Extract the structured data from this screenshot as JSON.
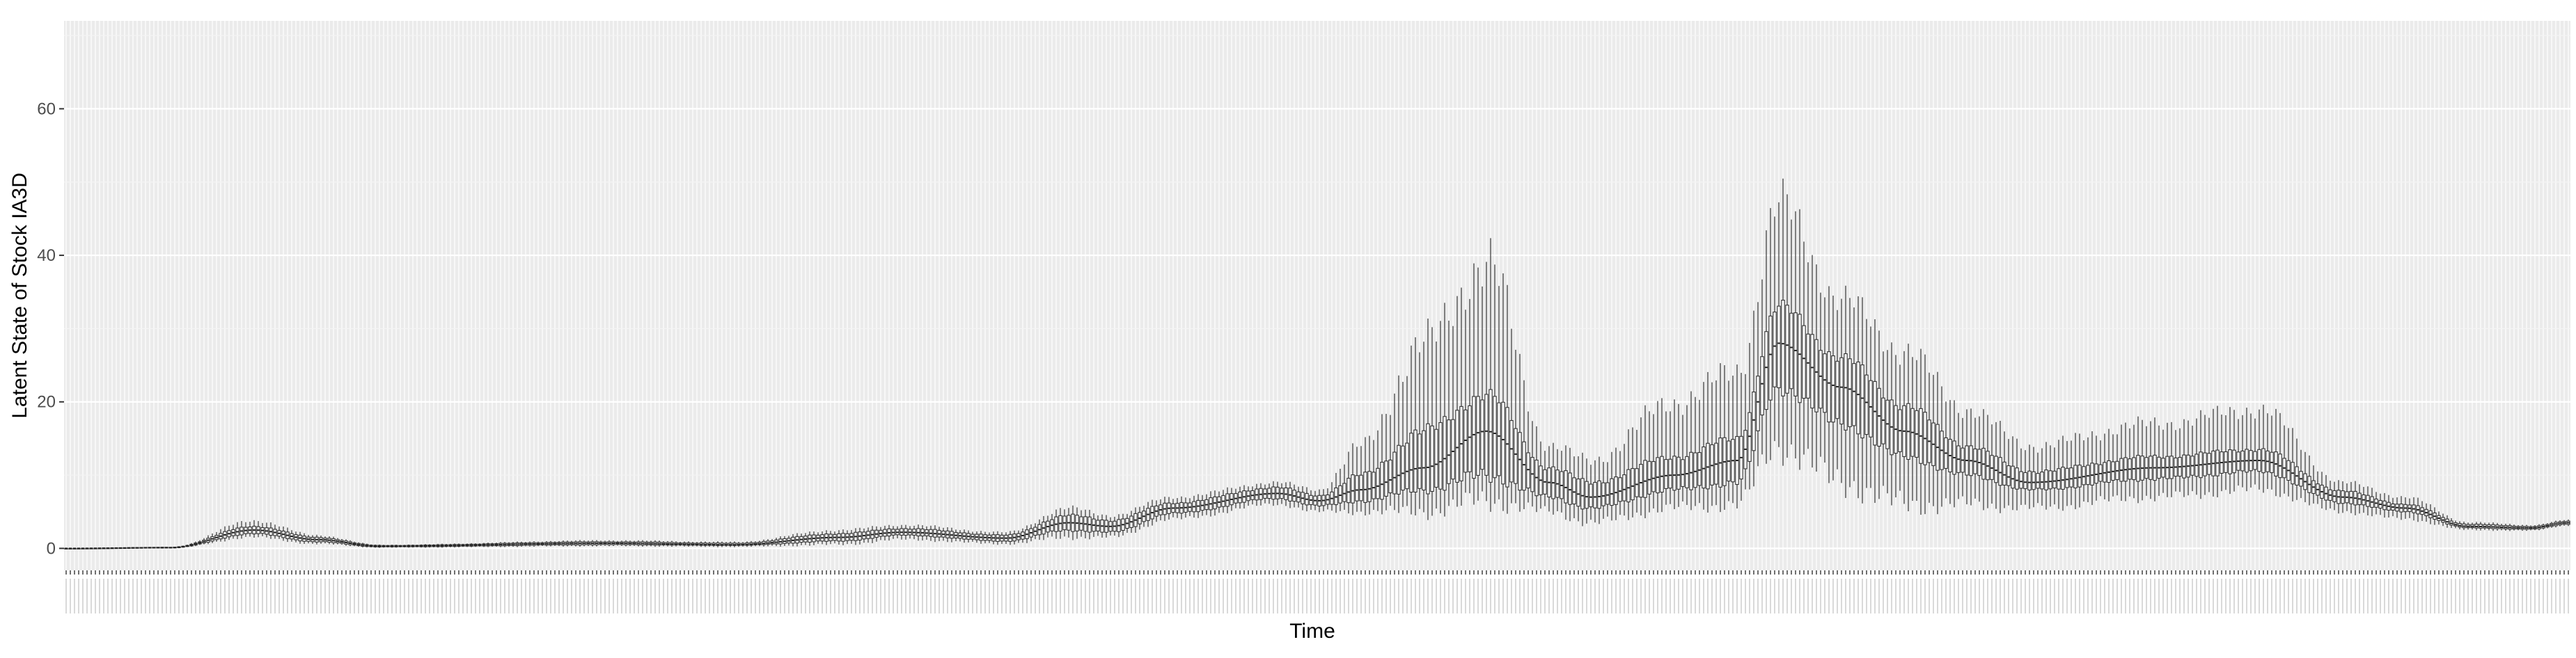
{
  "chart_data": {
    "type": "boxplot",
    "title": "",
    "xlabel": "Time",
    "ylabel": "Latent State of Stock IA3D",
    "ylim": [
      -3,
      72
    ],
    "y_ticks": [
      0,
      20,
      40,
      60
    ],
    "x_tick_labels_legible": false,
    "n_time_steps": 600,
    "grid": true,
    "panel_background": "#ebebeb",
    "box_color": "#333333",
    "series": [
      {
        "name": "",
        "description_of_median": "median per time step (approx. sampled every ~50 steps)",
        "keyframes": [
          {
            "t": 0,
            "median": 0.0,
            "q1": 0.0,
            "q3": 0.0,
            "lo": 0.0,
            "hi": 0.0
          },
          {
            "t": 25,
            "median": 0.1,
            "q1": 0.05,
            "q3": 0.15,
            "lo": 0.0,
            "hi": 0.2
          },
          {
            "t": 45,
            "median": 2.5,
            "q1": 2.0,
            "q3": 3.0,
            "lo": 1.5,
            "hi": 3.8
          },
          {
            "t": 60,
            "median": 1.2,
            "q1": 0.9,
            "q3": 1.5,
            "lo": 0.6,
            "hi": 1.8
          },
          {
            "t": 75,
            "median": 0.3,
            "q1": 0.2,
            "q3": 0.4,
            "lo": 0.1,
            "hi": 0.5
          },
          {
            "t": 130,
            "median": 0.7,
            "q1": 0.5,
            "q3": 0.9,
            "lo": 0.3,
            "hi": 1.1
          },
          {
            "t": 160,
            "median": 0.5,
            "q1": 0.4,
            "q3": 0.7,
            "lo": 0.2,
            "hi": 0.9
          },
          {
            "t": 185,
            "median": 1.5,
            "q1": 1.0,
            "q3": 2.0,
            "lo": 0.5,
            "hi": 2.5
          },
          {
            "t": 200,
            "median": 2.2,
            "q1": 1.8,
            "q3": 2.7,
            "lo": 1.2,
            "hi": 3.2
          },
          {
            "t": 225,
            "median": 1.4,
            "q1": 1.0,
            "q3": 1.8,
            "lo": 0.6,
            "hi": 2.2
          },
          {
            "t": 240,
            "median": 3.5,
            "q1": 2.5,
            "q3": 4.5,
            "lo": 1.5,
            "hi": 5.5
          },
          {
            "t": 250,
            "median": 3.0,
            "q1": 2.2,
            "q3": 3.8,
            "lo": 1.5,
            "hi": 4.5
          },
          {
            "t": 265,
            "median": 5.5,
            "q1": 4.8,
            "q3": 6.2,
            "lo": 4.0,
            "hi": 7.0
          },
          {
            "t": 290,
            "median": 7.5,
            "q1": 6.8,
            "q3": 8.3,
            "lo": 6.0,
            "hi": 9.0
          },
          {
            "t": 300,
            "median": 6.5,
            "q1": 5.8,
            "q3": 7.2,
            "lo": 5.0,
            "hi": 8.0
          },
          {
            "t": 310,
            "median": 8.0,
            "q1": 6.5,
            "q3": 10.0,
            "lo": 5.0,
            "hi": 14.0
          },
          {
            "t": 325,
            "median": 11.0,
            "q1": 8.0,
            "q3": 16.0,
            "lo": 5.0,
            "hi": 28.0
          },
          {
            "t": 340,
            "median": 16.0,
            "q1": 10.0,
            "q3": 21.0,
            "lo": 6.5,
            "hi": 39.0
          },
          {
            "t": 355,
            "median": 9.0,
            "q1": 7.0,
            "q3": 11.0,
            "lo": 5.0,
            "hi": 14.0
          },
          {
            "t": 365,
            "median": 7.0,
            "q1": 5.5,
            "q3": 9.0,
            "lo": 3.5,
            "hi": 12.0
          },
          {
            "t": 385,
            "median": 10.0,
            "q1": 8.0,
            "q3": 12.5,
            "lo": 5.5,
            "hi": 20.0
          },
          {
            "t": 400,
            "median": 12.0,
            "q1": 9.0,
            "q3": 15.0,
            "lo": 6.0,
            "hi": 24.0
          },
          {
            "t": 410,
            "median": 28.0,
            "q1": 22.0,
            "q3": 33.0,
            "lo": 14.0,
            "hi": 47.0
          },
          {
            "t": 425,
            "median": 22.0,
            "q1": 17.0,
            "q3": 26.0,
            "lo": 9.0,
            "hi": 34.0
          },
          {
            "t": 440,
            "median": 16.0,
            "q1": 12.5,
            "q3": 19.5,
            "lo": 6.0,
            "hi": 27.0
          },
          {
            "t": 455,
            "median": 12.0,
            "q1": 10.0,
            "q3": 14.0,
            "lo": 6.0,
            "hi": 19.0
          },
          {
            "t": 470,
            "median": 9.0,
            "q1": 8.0,
            "q3": 10.5,
            "lo": 5.5,
            "hi": 14.0
          },
          {
            "t": 500,
            "median": 11.0,
            "q1": 9.5,
            "q3": 12.5,
            "lo": 7.0,
            "hi": 17.0
          },
          {
            "t": 525,
            "median": 12.0,
            "q1": 10.5,
            "q3": 13.5,
            "lo": 8.0,
            "hi": 19.0
          },
          {
            "t": 545,
            "median": 7.0,
            "q1": 6.2,
            "q3": 7.8,
            "lo": 5.0,
            "hi": 9.0
          },
          {
            "t": 560,
            "median": 5.5,
            "q1": 5.0,
            "q3": 6.0,
            "lo": 4.0,
            "hi": 7.0
          },
          {
            "t": 575,
            "median": 3.0,
            "q1": 2.8,
            "q3": 3.3,
            "lo": 2.5,
            "hi": 3.6
          },
          {
            "t": 590,
            "median": 2.8,
            "q1": 2.6,
            "q3": 3.0,
            "lo": 2.4,
            "hi": 3.2
          },
          {
            "t": 599,
            "median": 3.5,
            "q1": 3.3,
            "q3": 3.7,
            "lo": 3.1,
            "hi": 3.9
          }
        ]
      }
    ]
  }
}
